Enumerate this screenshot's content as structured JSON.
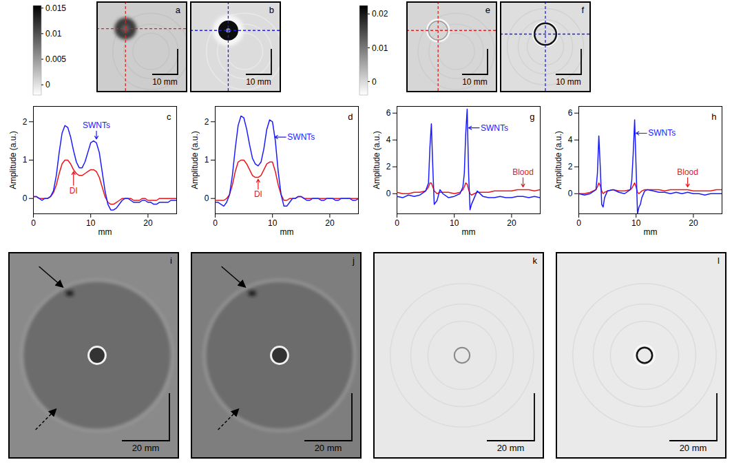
{
  "chart_data": [
    {
      "type": "line",
      "panel": "c",
      "x_label": "mm",
      "y_label": "Amplitude (a.u.)",
      "xlim": [
        0,
        25
      ],
      "xticks": [
        0,
        10,
        20
      ],
      "ylim": [
        -0.4,
        2.4
      ],
      "yticks": [
        0,
        1,
        2
      ],
      "x": [
        0,
        0.5,
        1,
        1.5,
        2,
        2.5,
        3,
        3.5,
        4,
        4.5,
        5,
        5.5,
        6,
        6.5,
        7,
        7.5,
        8,
        8.5,
        9,
        9.5,
        10,
        10.5,
        11,
        11.5,
        12,
        12.5,
        13,
        13.5,
        14,
        14.5,
        15,
        15.5,
        16,
        16.5,
        17,
        17.5,
        18,
        18.5,
        19,
        19.5,
        20,
        20.5,
        21,
        21.5,
        22,
        22.5,
        23,
        23.5,
        24,
        24.5,
        25
      ],
      "series": [
        {
          "name": "DI",
          "color": "#e8161b",
          "values": [
            0.05,
            0.05,
            0.0,
            0.0,
            0.0,
            0.0,
            0.05,
            0.15,
            0.35,
            0.65,
            0.9,
            1.0,
            1.0,
            0.9,
            0.75,
            0.65,
            0.6,
            0.6,
            0.65,
            0.7,
            0.75,
            0.75,
            0.7,
            0.55,
            0.3,
            0.05,
            -0.1,
            -0.15,
            -0.15,
            -0.1,
            -0.05,
            0.0,
            0.0,
            0.0,
            0.0,
            -0.05,
            -0.05,
            -0.05,
            0.0,
            0.0,
            -0.05,
            -0.05,
            -0.05,
            -0.05,
            0.0,
            0.0,
            0.0,
            0.0,
            0.0,
            0.0,
            0.0
          ]
        },
        {
          "name": "SWNTs",
          "color": "#1a1aff",
          "values": [
            0.05,
            0.05,
            0.0,
            -0.05,
            0.0,
            0.0,
            0.05,
            0.2,
            0.6,
            1.2,
            1.7,
            1.9,
            1.85,
            1.6,
            1.25,
            0.95,
            0.8,
            0.8,
            0.95,
            1.2,
            1.45,
            1.5,
            1.45,
            1.2,
            0.7,
            0.2,
            -0.15,
            -0.3,
            -0.3,
            -0.25,
            -0.15,
            -0.05,
            0.0,
            0.0,
            -0.05,
            -0.1,
            -0.1,
            -0.1,
            -0.05,
            -0.05,
            -0.1,
            -0.1,
            -0.15,
            -0.15,
            -0.1,
            -0.1,
            -0.1,
            -0.1,
            -0.05,
            -0.05,
            -0.05
          ]
        }
      ],
      "annotations": [
        {
          "text": "SWNTs",
          "x": 11,
          "y": 1.9,
          "target_x": 11,
          "target_y": 1.55
        },
        {
          "text": "DI",
          "x": 7,
          "y": 0.2,
          "target_x": 7,
          "target_y": 0.7
        }
      ]
    },
    {
      "type": "line",
      "panel": "d",
      "x_label": "mm",
      "y_label": "Amplitude (a.u.)",
      "xlim": [
        0,
        25
      ],
      "xticks": [
        0,
        10,
        20
      ],
      "ylim": [
        -0.4,
        2.4
      ],
      "yticks": [
        0,
        1,
        2
      ],
      "x": [
        0,
        0.5,
        1,
        1.5,
        2,
        2.5,
        3,
        3.5,
        4,
        4.5,
        5,
        5.5,
        6,
        6.5,
        7,
        7.5,
        8,
        8.5,
        9,
        9.5,
        10,
        10.5,
        11,
        11.5,
        12,
        12.5,
        13,
        13.5,
        14,
        14.5,
        15,
        15.5,
        16,
        16.5,
        17,
        17.5,
        18,
        18.5,
        19,
        19.5,
        20,
        20.5,
        21,
        21.5,
        22,
        22.5,
        23,
        23.5,
        24,
        24.5,
        25
      ],
      "series": [
        {
          "name": "DI",
          "color": "#e8161b",
          "values": [
            -0.05,
            -0.05,
            -0.05,
            -0.05,
            0.0,
            0.1,
            0.35,
            0.7,
            0.95,
            1.0,
            1.0,
            0.9,
            0.75,
            0.6,
            0.55,
            0.55,
            0.6,
            0.75,
            0.9,
            0.95,
            0.95,
            0.7,
            0.35,
            0.1,
            -0.05,
            -0.05,
            0.0,
            0.0,
            0.0,
            0.05,
            0.05,
            0.0,
            0.0,
            0.0,
            0.0,
            0.0,
            0.0,
            0.0,
            0.0,
            0.0,
            0.0,
            0.0,
            0.0,
            0.0,
            0.0,
            0.0,
            0.0,
            0.0,
            0.0,
            0.0,
            0.0
          ]
        },
        {
          "name": "SWNTs",
          "color": "#1a1aff",
          "values": [
            -0.1,
            -0.1,
            -0.15,
            -0.2,
            -0.1,
            0.1,
            0.6,
            1.3,
            1.9,
            2.15,
            2.1,
            1.8,
            1.4,
            1.05,
            0.9,
            0.85,
            0.95,
            1.3,
            1.8,
            2.05,
            2.0,
            1.5,
            0.7,
            0.1,
            -0.2,
            -0.2,
            -0.1,
            0.0,
            0.0,
            0.05,
            0.05,
            0.0,
            -0.05,
            -0.05,
            0.0,
            0.0,
            0.0,
            -0.05,
            -0.05,
            0.0,
            0.0,
            0.0,
            -0.05,
            -0.05,
            0.0,
            0.0,
            0.0,
            0.0,
            -0.05,
            -0.05,
            0.0
          ]
        }
      ],
      "annotations": [
        {
          "text": "SWNTs",
          "x": 15,
          "y": 1.6,
          "target_x": 10.4,
          "target_y": 1.6
        },
        {
          "text": "DI",
          "x": 7.5,
          "y": 0.1,
          "target_x": 7.5,
          "target_y": 0.5
        }
      ]
    },
    {
      "type": "line",
      "panel": "g",
      "x_label": "mm",
      "y_label": "Amplitude (a.u.)",
      "xlim": [
        0,
        25
      ],
      "xticks": [
        0,
        10,
        20
      ],
      "ylim": [
        -1.5,
        6.5
      ],
      "yticks": [
        0,
        2,
        4,
        6
      ],
      "x": [
        0,
        1,
        2,
        3,
        4,
        5,
        5.5,
        5.75,
        6,
        6.25,
        6.5,
        7,
        7.5,
        8,
        9,
        10,
        11,
        11.5,
        11.75,
        12,
        12.25,
        12.5,
        12.75,
        13,
        13.5,
        14,
        15,
        16,
        17,
        18,
        19,
        20,
        21,
        22,
        23,
        24,
        25
      ],
      "series": [
        {
          "name": "Blood",
          "color": "#e8161b",
          "values": [
            0.1,
            0.0,
            0.0,
            0.1,
            0.1,
            0.2,
            0.5,
            0.8,
            0.8,
            0.5,
            0.2,
            0.0,
            0.1,
            0.1,
            0.1,
            0.0,
            0.1,
            0.3,
            0.5,
            0.8,
            0.7,
            0.3,
            0.0,
            -0.1,
            0.0,
            0.1,
            0.1,
            0.1,
            0.2,
            0.2,
            0.2,
            0.2,
            0.3,
            0.3,
            0.3,
            0.2,
            0.3
          ]
        },
        {
          "name": "SWNTs",
          "color": "#1a1aff",
          "values": [
            -0.2,
            -0.3,
            -0.1,
            -0.2,
            -0.1,
            0.2,
            0.8,
            3.5,
            5.2,
            2.0,
            -0.8,
            -0.5,
            0.3,
            0.0,
            -0.3,
            -0.2,
            0.0,
            0.5,
            1.5,
            4.5,
            6.3,
            1.5,
            -1.2,
            -0.8,
            -0.3,
            0.2,
            -0.2,
            -0.3,
            -0.3,
            -0.2,
            -0.3,
            -0.3,
            -0.2,
            -0.2,
            -0.3,
            -0.2,
            -0.3
          ]
        }
      ],
      "annotations": [
        {
          "text": "SWNTs",
          "x": 17,
          "y": 4.9,
          "target_x": 12.5,
          "target_y": 4.9
        },
        {
          "text": "Blood",
          "x": 22,
          "y": 1.6,
          "target_x": 22,
          "target_y": 0.5
        }
      ]
    },
    {
      "type": "line",
      "panel": "h",
      "x_label": "mm",
      "y_label": "Amplitude (a.u.)",
      "xlim": [
        0,
        25
      ],
      "xticks": [
        0,
        10,
        20
      ],
      "ylim": [
        -1.5,
        6.5
      ],
      "yticks": [
        0,
        2,
        4,
        6
      ],
      "x": [
        0,
        1,
        2,
        3,
        3.25,
        3.5,
        3.75,
        4,
        4.25,
        4.5,
        5,
        6,
        7,
        8,
        9,
        9.25,
        9.5,
        9.75,
        10,
        10.25,
        10.5,
        10.75,
        11,
        11.5,
        12,
        13,
        14,
        15,
        16,
        17,
        18,
        19,
        20,
        21,
        22,
        23,
        24,
        25
      ],
      "series": [
        {
          "name": "Blood",
          "color": "#e8161b",
          "values": [
            0.0,
            0.0,
            0.1,
            0.3,
            0.5,
            0.8,
            0.6,
            0.2,
            0.0,
            0.1,
            0.2,
            0.3,
            0.2,
            0.2,
            0.3,
            0.4,
            0.6,
            0.8,
            0.5,
            0.1,
            0.0,
            0.1,
            0.2,
            0.3,
            0.3,
            0.3,
            0.3,
            0.2,
            0.3,
            0.3,
            0.3,
            0.3,
            0.2,
            0.2,
            0.2,
            0.2,
            0.3,
            0.3
          ]
        },
        {
          "name": "SWNTs",
          "color": "#1a1aff",
          "values": [
            0.0,
            -0.1,
            0.0,
            0.3,
            1.5,
            4.3,
            2.0,
            -0.8,
            -1.0,
            -0.3,
            0.2,
            0.3,
            0.1,
            0.0,
            0.3,
            1.0,
            3.0,
            5.5,
            2.0,
            -1.5,
            -1.0,
            -0.8,
            -0.3,
            0.2,
            0.3,
            0.2,
            0.1,
            0.1,
            0.0,
            0.1,
            0.0,
            0.1,
            0.0,
            0.0,
            -0.1,
            0.0,
            0.0,
            0.0
          ]
        }
      ],
      "annotations": [
        {
          "text": "SWNTs",
          "x": 14.5,
          "y": 4.5,
          "target_x": 10.0,
          "target_y": 4.5
        },
        {
          "text": "Blood",
          "x": 19,
          "y": 1.6,
          "target_x": 19,
          "target_y": 0.5
        }
      ]
    }
  ],
  "colorbars": [
    {
      "range": [
        -0.002,
        0.0155
      ],
      "ticks": [
        0,
        0.005,
        0.01,
        0.015
      ]
    },
    {
      "range": [
        -0.004,
        0.0225
      ],
      "ticks": [
        0,
        0.01,
        0.02
      ]
    }
  ],
  "image_panels": [
    {
      "panel": "a",
      "scale_bar": "10 mm"
    },
    {
      "panel": "b",
      "scale_bar": "10 mm"
    },
    {
      "panel": "e",
      "scale_bar": "10 mm"
    },
    {
      "panel": "f",
      "scale_bar": "10 mm"
    },
    {
      "panel": "i",
      "scale_bar": "20 mm"
    },
    {
      "panel": "j",
      "scale_bar": "20 mm"
    },
    {
      "panel": "k",
      "scale_bar": "20 mm"
    },
    {
      "panel": "l",
      "scale_bar": "20 mm"
    }
  ]
}
